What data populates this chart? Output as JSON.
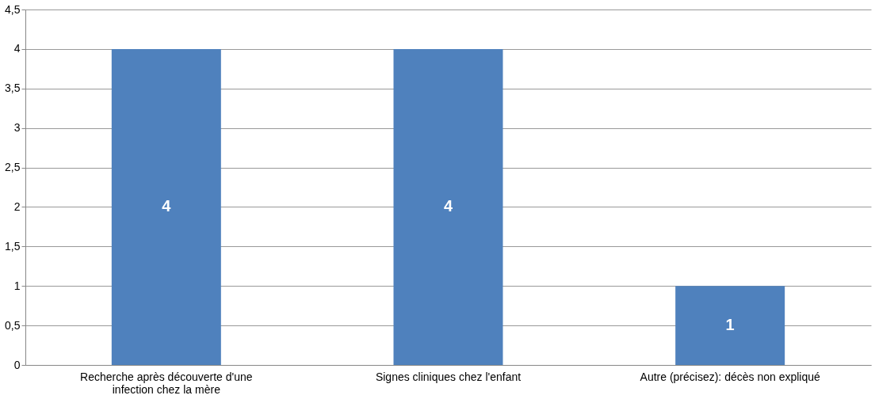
{
  "chart_data": {
    "type": "bar",
    "categories": [
      "Recherche après découverte d'une infection chez la mère",
      "Signes cliniques chez l'enfant",
      "Autre (précisez): décès non expliqué"
    ],
    "values": [
      4,
      4,
      1
    ],
    "color": "#4f81bd",
    "ylim": [
      0,
      4.5
    ],
    "yticks": [
      0,
      {
        "value": 0.5,
        "label": "0,5"
      },
      1,
      {
        "value": 1.5,
        "label": "1,5"
      },
      2,
      {
        "value": 2.5,
        "label": "2,5"
      },
      3,
      {
        "value": 3.5,
        "label": "3,5"
      },
      4,
      {
        "value": 4.5,
        "label": "4,5"
      }
    ],
    "grid": "y",
    "data_labels": true
  }
}
